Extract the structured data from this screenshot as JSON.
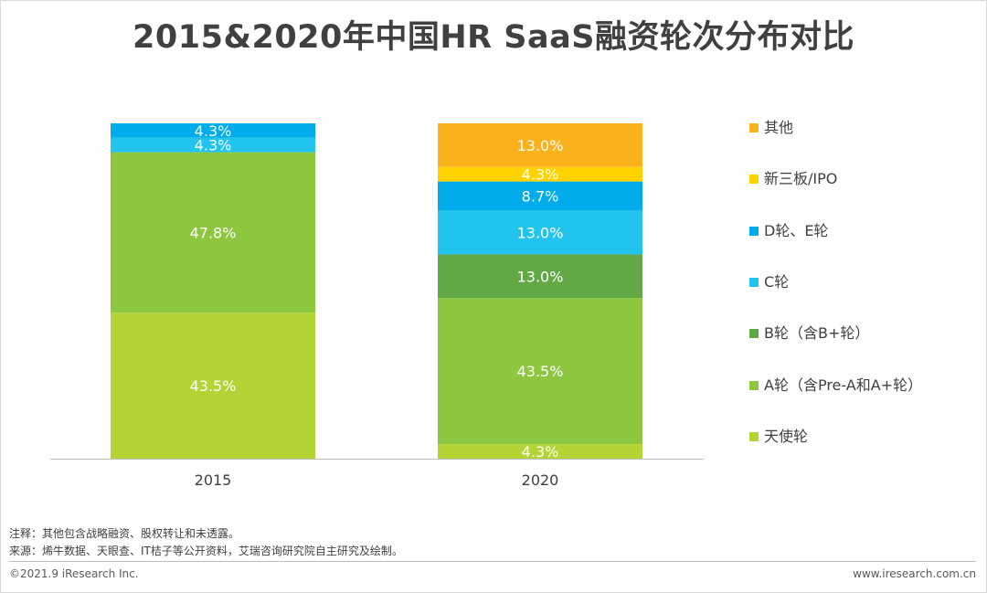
{
  "title": "2015&2020年中国HR SaaS融资轮次分布对比",
  "chart_data": {
    "type": "bar",
    "stacked": true,
    "title": "2015&2020年中国HR SaaS融资轮次分布对比",
    "categories": [
      "2015",
      "2020"
    ],
    "ylim": [
      0,
      100
    ],
    "unit": "%",
    "series": [
      {
        "name": "天使轮",
        "color": "#b4d334",
        "values": [
          43.5,
          4.3
        ],
        "labels": [
          "43.5%",
          "4.3%"
        ]
      },
      {
        "name": "A轮（含Pre-A和A+轮）",
        "color": "#8dc63f",
        "values": [
          47.8,
          43.5
        ],
        "labels": [
          "47.8%",
          "43.5%"
        ]
      },
      {
        "name": "B轮（含B+轮）",
        "color": "#62a844",
        "values": [
          0,
          13.0
        ],
        "labels": [
          "",
          "13.0%"
        ]
      },
      {
        "name": "C轮",
        "color": "#22c4ee",
        "values": [
          4.3,
          13.0
        ],
        "labels": [
          "4.3%",
          "13.0%"
        ]
      },
      {
        "name": "D轮、E轮",
        "color": "#00ace9",
        "values": [
          4.3,
          8.7
        ],
        "labels": [
          "4.3%",
          "8.7%"
        ]
      },
      {
        "name": "新三板/IPO",
        "color": "#ffd200",
        "values": [
          0,
          4.3
        ],
        "labels": [
          "",
          "4.3%"
        ]
      },
      {
        "name": "其他",
        "color": "#f9b21b",
        "values": [
          0,
          13.0
        ],
        "labels": [
          "",
          "13.0%"
        ]
      }
    ],
    "legend_position": "right"
  },
  "notes": {
    "note": "注释：其他包含战略融资、股权转让和未透露。",
    "source": "来源：烯牛数据、天眼查、IT桔子等公开资料，艾瑞咨询研究院自主研究及绘制。"
  },
  "footer": {
    "copyright": "©2021.9 iResearch Inc.",
    "website": "www.iresearch.com.cn"
  }
}
